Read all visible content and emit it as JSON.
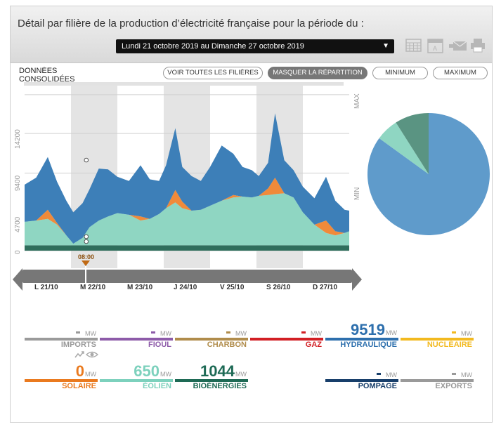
{
  "header": {
    "title": "Détail par filière de la production d’électricité française pour la période du :",
    "period": "Lundi 21 octobre 2019 au Dimanche 27 octobre 2019"
  },
  "consolidated_label": "DONNÉES CONSOLIDÉES",
  "buttons": {
    "show_all": "VOIR TOUTES LES FILIÈRES",
    "hide_split": "MASQUER LA RÉPARTITION",
    "minimum": "MINIMUM",
    "maximum": "MAXIMUM"
  },
  "chart_data": [
    {
      "type": "area",
      "stacked": true,
      "x_unit": "day",
      "xlim": [
        0,
        7
      ],
      "ylim": [
        0,
        20000
      ],
      "y_ticks": [
        "0",
        "4700",
        "9400",
        "14200"
      ],
      "side_labels": [
        "MAX",
        "MIN"
      ],
      "grid": true,
      "days": [
        "L 21/10",
        "M 22/10",
        "M 23/10",
        "J 24/10",
        "V 25/10",
        "S 26/10",
        "D 27/10"
      ],
      "cursor_label": "08:00",
      "x": [
        0,
        0.25,
        0.5,
        0.7,
        0.9,
        1.05,
        1.25,
        1.4,
        1.6,
        1.8,
        2.0,
        2.25,
        2.5,
        2.7,
        2.9,
        3.05,
        3.25,
        3.4,
        3.6,
        3.8,
        4.0,
        4.25,
        4.5,
        4.7,
        4.9,
        5.05,
        5.25,
        5.4,
        5.6,
        5.8,
        6.0,
        6.25,
        6.5,
        6.7,
        6.9,
        7.0
      ],
      "series": [
        {
          "color": "#2f6e5c",
          "values": [
            650,
            650,
            650,
            650,
            650,
            650,
            650,
            650,
            650,
            650,
            650,
            650,
            650,
            650,
            650,
            650,
            650,
            650,
            650,
            650,
            650,
            650,
            650,
            650,
            650,
            650,
            650,
            650,
            650,
            650,
            650,
            650,
            650,
            650,
            650,
            650
          ]
        },
        {
          "color": "#8fd6c2",
          "values": [
            2850,
            3000,
            3200,
            2500,
            1200,
            200,
            900,
            2200,
            3000,
            3500,
            3900,
            3700,
            3000,
            3200,
            3800,
            4500,
            5200,
            4500,
            4200,
            4300,
            4800,
            5400,
            5800,
            5900,
            5800,
            6000,
            6100,
            6200,
            6300,
            5800,
            4000,
            2500,
            1500,
            1200,
            1500,
            1700
          ]
        },
        {
          "color": "#f08a3a",
          "values": [
            0,
            0,
            1100,
            200,
            0,
            0,
            0,
            0,
            0,
            0,
            0,
            0,
            500,
            0,
            0,
            0,
            1500,
            800,
            0,
            0,
            0,
            0,
            300,
            0,
            0,
            0,
            800,
            2000,
            0,
            0,
            0,
            0,
            1500,
            500,
            0,
            0
          ]
        },
        {
          "color": "#3d7fb8",
          "values": [
            4500,
            5200,
            6400,
            5000,
            4200,
            3800,
            4200,
            4600,
            6300,
            5700,
            4400,
            4100,
            6200,
            4800,
            4000,
            5200,
            7500,
            4200,
            4200,
            3500,
            4700,
            6700,
            5000,
            3600,
            3300,
            2400,
            3100,
            7800,
            4000,
            3300,
            3100,
            3200,
            5300,
            3700,
            2800,
            2500
          ]
        }
      ]
    },
    {
      "type": "pie",
      "slices": [
        {
          "color": "#5f9bcb",
          "value": 85
        },
        {
          "color": "#8fd6c2",
          "value": 6
        },
        {
          "color": "#5a9482",
          "value": 9
        }
      ]
    }
  ],
  "unit": "MW",
  "filieres": [
    {
      "key": "imports",
      "name": "IMPORTS",
      "value": "",
      "color": "#9a9a9a"
    },
    {
      "key": "fioul",
      "name": "FIOUL",
      "value": "",
      "color": "#8d5ba9"
    },
    {
      "key": "charbon",
      "name": "CHARBON",
      "value": "",
      "color": "#b08c4b"
    },
    {
      "key": "gaz",
      "name": "GAZ",
      "value": "",
      "color": "#d21f24"
    },
    {
      "key": "hydraulique",
      "name": "HYDRAULIQUE",
      "value": "9519",
      "color": "#2d6fad"
    },
    {
      "key": "nucleaire",
      "name": "NUCLÉAIRE",
      "value": "",
      "color": "#f2b91f"
    },
    {
      "key": "solaire",
      "name": "SOLAIRE",
      "value": "0",
      "color": "#ea7a1f"
    },
    {
      "key": "eolien",
      "name": "ÉOLIEN",
      "value": "650",
      "color": "#7dd1bd"
    },
    {
      "key": "bioenergies",
      "name": "BIOÉNERGIES",
      "value": "1044",
      "color": "#1e6a55"
    },
    {
      "key": "pompage",
      "name": "POMPAGE",
      "value": "",
      "color": "#183f6b"
    },
    {
      "key": "exports",
      "name": "EXPORTS",
      "value": "",
      "color": "#9a9a9a"
    }
  ]
}
